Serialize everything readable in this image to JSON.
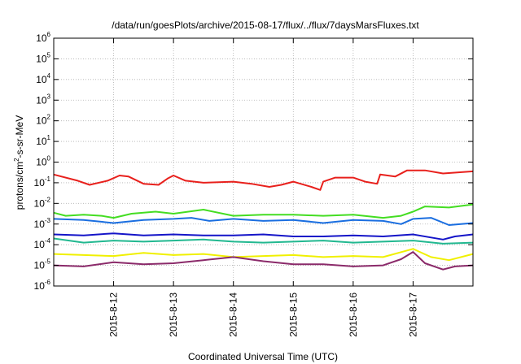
{
  "chart_data": {
    "type": "line",
    "title": "/data/run/goesPlots/archive/2015-08-17/flux/../flux/7daysMarsFluxes.txt",
    "xlabel": "Coordinated Universal Time (UTC)",
    "ylabel": "protons/cm²-s-sr-MeV",
    "x_range_days": [
      -1.0,
      6.0
    ],
    "x_tick_labels": [
      "2015-8-12",
      "2015-8-13",
      "2015-8-14",
      "2015-8-15",
      "2015-8-16",
      "2015-8-17"
    ],
    "y_scale": "log",
    "y_ticks": [
      {
        "base": "10",
        "exp": "-6"
      },
      {
        "base": "10",
        "exp": "-5"
      },
      {
        "base": "10",
        "exp": "-4"
      },
      {
        "base": "10",
        "exp": "-3"
      },
      {
        "base": "10",
        "exp": "-2"
      },
      {
        "base": "10",
        "exp": "-1"
      },
      {
        "base": "10",
        "exp": "0"
      },
      {
        "base": "10",
        "exp": "1"
      },
      {
        "base": "10",
        "exp": "2"
      },
      {
        "base": "10",
        "exp": "3"
      },
      {
        "base": "10",
        "exp": "4"
      },
      {
        "base": "10",
        "exp": "5"
      },
      {
        "base": "10",
        "exp": "6"
      }
    ],
    "ylim_log10": [
      -6,
      6
    ],
    "grid": true,
    "legend": "none",
    "series": [
      {
        "color": "#e8201c",
        "points": [
          [
            -1.0,
            -0.6
          ],
          [
            -0.6,
            -0.9
          ],
          [
            -0.4,
            -1.1
          ],
          [
            -0.1,
            -0.9
          ],
          [
            0.1,
            -0.65
          ],
          [
            0.25,
            -0.7
          ],
          [
            0.5,
            -1.05
          ],
          [
            0.75,
            -1.1
          ],
          [
            0.9,
            -0.8
          ],
          [
            1.0,
            -0.65
          ],
          [
            1.2,
            -0.9
          ],
          [
            1.5,
            -1.0
          ],
          [
            2.0,
            -0.95
          ],
          [
            2.3,
            -1.05
          ],
          [
            2.6,
            -1.2
          ],
          [
            2.8,
            -1.1
          ],
          [
            3.0,
            -0.95
          ],
          [
            3.3,
            -1.2
          ],
          [
            3.45,
            -1.35
          ],
          [
            3.5,
            -0.95
          ],
          [
            3.7,
            -0.75
          ],
          [
            4.0,
            -0.75
          ],
          [
            4.2,
            -0.95
          ],
          [
            4.4,
            -1.05
          ],
          [
            4.45,
            -0.6
          ],
          [
            4.7,
            -0.7
          ],
          [
            4.9,
            -0.4
          ],
          [
            5.2,
            -0.4
          ],
          [
            5.5,
            -0.55
          ],
          [
            6.0,
            -0.45
          ]
        ]
      },
      {
        "color": "#44dd22",
        "points": [
          [
            -1.0,
            -2.45
          ],
          [
            -0.8,
            -2.6
          ],
          [
            -0.5,
            -2.55
          ],
          [
            -0.2,
            -2.6
          ],
          [
            0.0,
            -2.7
          ],
          [
            0.3,
            -2.5
          ],
          [
            0.7,
            -2.4
          ],
          [
            1.0,
            -2.5
          ],
          [
            1.5,
            -2.3
          ],
          [
            2.0,
            -2.6
          ],
          [
            2.5,
            -2.55
          ],
          [
            3.0,
            -2.55
          ],
          [
            3.5,
            -2.6
          ],
          [
            4.0,
            -2.55
          ],
          [
            4.5,
            -2.7
          ],
          [
            4.8,
            -2.6
          ],
          [
            5.0,
            -2.4
          ],
          [
            5.2,
            -2.15
          ],
          [
            5.6,
            -2.2
          ],
          [
            6.0,
            -2.05
          ]
        ]
      },
      {
        "color": "#1a6ee0",
        "points": [
          [
            -1.0,
            -2.75
          ],
          [
            -0.5,
            -2.8
          ],
          [
            0.0,
            -2.95
          ],
          [
            0.5,
            -2.8
          ],
          [
            1.0,
            -2.75
          ],
          [
            1.3,
            -2.7
          ],
          [
            1.6,
            -2.85
          ],
          [
            2.0,
            -2.75
          ],
          [
            2.5,
            -2.85
          ],
          [
            3.0,
            -2.8
          ],
          [
            3.5,
            -2.95
          ],
          [
            4.0,
            -2.8
          ],
          [
            4.5,
            -2.85
          ],
          [
            4.8,
            -3.0
          ],
          [
            5.0,
            -2.75
          ],
          [
            5.3,
            -2.7
          ],
          [
            5.6,
            -3.05
          ],
          [
            6.0,
            -2.95
          ]
        ]
      },
      {
        "color": "#1414c8",
        "points": [
          [
            -1.0,
            -3.5
          ],
          [
            -0.5,
            -3.55
          ],
          [
            0.0,
            -3.45
          ],
          [
            0.5,
            -3.55
          ],
          [
            1.0,
            -3.5
          ],
          [
            1.5,
            -3.55
          ],
          [
            2.0,
            -3.55
          ],
          [
            2.5,
            -3.5
          ],
          [
            3.0,
            -3.6
          ],
          [
            3.5,
            -3.6
          ],
          [
            4.0,
            -3.55
          ],
          [
            4.5,
            -3.6
          ],
          [
            5.0,
            -3.5
          ],
          [
            5.3,
            -3.65
          ],
          [
            5.5,
            -3.75
          ],
          [
            5.7,
            -3.6
          ],
          [
            6.0,
            -3.5
          ]
        ]
      },
      {
        "color": "#22b890",
        "points": [
          [
            -1.0,
            -3.7
          ],
          [
            -0.5,
            -3.9
          ],
          [
            0.0,
            -3.8
          ],
          [
            0.5,
            -3.85
          ],
          [
            1.0,
            -3.8
          ],
          [
            1.5,
            -3.75
          ],
          [
            2.0,
            -3.85
          ],
          [
            2.5,
            -3.9
          ],
          [
            3.0,
            -3.85
          ],
          [
            3.5,
            -3.8
          ],
          [
            4.0,
            -3.9
          ],
          [
            4.5,
            -3.85
          ],
          [
            5.0,
            -3.8
          ],
          [
            5.5,
            -3.95
          ],
          [
            6.0,
            -3.9
          ]
        ]
      },
      {
        "color": "#f0f000",
        "points": [
          [
            -1.0,
            -4.45
          ],
          [
            -0.5,
            -4.5
          ],
          [
            0.0,
            -4.55
          ],
          [
            0.5,
            -4.4
          ],
          [
            1.0,
            -4.5
          ],
          [
            1.5,
            -4.45
          ],
          [
            2.0,
            -4.6
          ],
          [
            2.5,
            -4.55
          ],
          [
            3.0,
            -4.5
          ],
          [
            3.5,
            -4.6
          ],
          [
            4.0,
            -4.55
          ],
          [
            4.5,
            -4.6
          ],
          [
            5.0,
            -4.2
          ],
          [
            5.3,
            -4.6
          ],
          [
            5.6,
            -4.75
          ],
          [
            6.0,
            -4.45
          ]
        ]
      },
      {
        "color": "#8b2a6a",
        "points": [
          [
            -1.0,
            -5.0
          ],
          [
            -0.5,
            -5.05
          ],
          [
            0.0,
            -4.85
          ],
          [
            0.5,
            -4.95
          ],
          [
            1.0,
            -4.9
          ],
          [
            1.5,
            -4.75
          ],
          [
            2.0,
            -4.6
          ],
          [
            2.5,
            -4.8
          ],
          [
            3.0,
            -4.95
          ],
          [
            3.5,
            -4.95
          ],
          [
            4.0,
            -5.05
          ],
          [
            4.5,
            -5.0
          ],
          [
            4.8,
            -4.7
          ],
          [
            5.0,
            -4.35
          ],
          [
            5.2,
            -4.9
          ],
          [
            5.5,
            -5.2
          ],
          [
            5.7,
            -5.05
          ],
          [
            6.0,
            -5.0
          ]
        ]
      }
    ]
  }
}
